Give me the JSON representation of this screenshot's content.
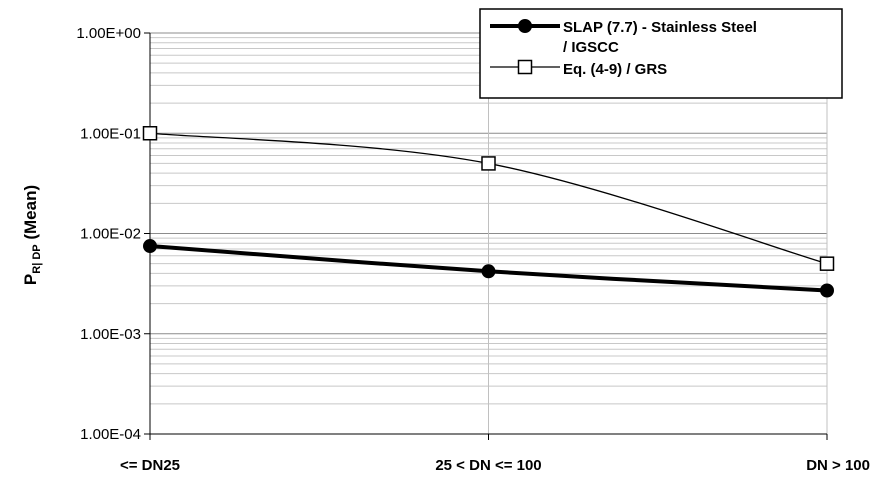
{
  "chart_data": {
    "type": "line",
    "yscale": "log",
    "ylim": [
      0.0001,
      1
    ],
    "ylabel": "P",
    "ylabel_subscript": "R| DP",
    "ylabel_suffix": " (Mean)",
    "categories": [
      "<= DN25",
      "25 < DN <= 100",
      "DN > 100"
    ],
    "y_ticks": [
      {
        "value": 1,
        "label": "1.00E+00"
      },
      {
        "value": 0.1,
        "label": "1.00E-01"
      },
      {
        "value": 0.01,
        "label": "1.00E-02"
      },
      {
        "value": 0.001,
        "label": "1.00E-03"
      },
      {
        "value": 0.0001,
        "label": "1.00E-04"
      }
    ],
    "grid": true,
    "legend_position": "top-right",
    "series": [
      {
        "name": "SLAP (7.7) - Stainless Steel / IGSCC",
        "legend_lines": [
          "SLAP (7.7) - Stainless Steel",
          "/ IGSCC"
        ],
        "marker": "filled-circle",
        "color": "#000000",
        "values": [
          0.0075,
          0.0042,
          0.0027
        ]
      },
      {
        "name": "Eq. (4-9) / GRS",
        "legend_lines": [
          "Eq. (4-9) / GRS"
        ],
        "marker": "open-square",
        "color": "#000000",
        "values": [
          0.1,
          0.05,
          0.005
        ]
      }
    ]
  }
}
